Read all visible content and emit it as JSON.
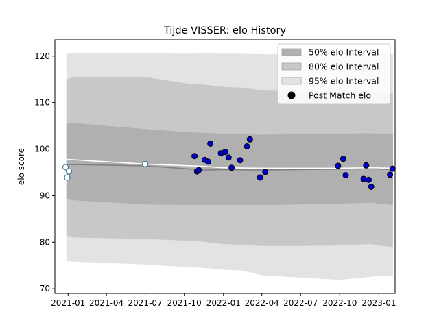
{
  "chart_data": {
    "type": "scatter",
    "title": "Tijde VISSER: elo History",
    "xlabel": "",
    "ylabel": "elo score",
    "xlim": [
      "2020-12-01",
      "2023-02-08"
    ],
    "ylim": [
      69,
      123.5
    ],
    "x_ticks": [
      "2021-01-01",
      "2021-04-01",
      "2021-07-01",
      "2021-10-01",
      "2022-01-01",
      "2022-04-01",
      "2022-07-01",
      "2022-10-01",
      "2023-01-01"
    ],
    "x_tick_labels": [
      "2021-01",
      "2021-04",
      "2021-07",
      "2021-10",
      "2022-01",
      "2022-04",
      "2022-07",
      "2022-10",
      "2023-01"
    ],
    "y_ticks": [
      70,
      80,
      90,
      100,
      110,
      120
    ],
    "y_tick_labels": [
      "70",
      "80",
      "90",
      "100",
      "110",
      "120"
    ],
    "grid": false,
    "legend": {
      "placement": "top-right",
      "entries": [
        {
          "label": "50% elo Interval",
          "color": "#b0b0b0"
        },
        {
          "label": "80% elo Interval",
          "color": "#c8c8c8"
        },
        {
          "label": "95% elo Interval",
          "color": "#e3e3e3"
        },
        {
          "label": "Post Match elo",
          "color": "#000000"
        }
      ]
    },
    "band_x": [
      "2020-12-28",
      "2021-01-15",
      "2021-07-01",
      "2021-10-15",
      "2021-11-15",
      "2022-01-01",
      "2022-02-15",
      "2022-04-01",
      "2022-07-01",
      "2022-10-01",
      "2022-11-15",
      "2022-12-15",
      "2023-01-01",
      "2023-02-03"
    ],
    "bands": [
      {
        "name": "95% elo Interval",
        "color": "#e3e3e3",
        "upper": [
          120.5,
          120.6,
          120.6,
          120.5,
          120.6,
          120.5,
          120.5,
          120.4,
          120.3,
          120.1,
          120.2,
          120.3,
          120.4,
          120.4
        ],
        "lower": [
          75.9,
          75.8,
          75.2,
          74.6,
          74.5,
          74.1,
          73.9,
          72.9,
          72.4,
          71.9,
          72.3,
          72.6,
          72.8,
          72.7
        ]
      },
      {
        "name": "80% elo Interval",
        "color": "#c8c8c8",
        "upper": [
          115.0,
          115.5,
          115.5,
          114.0,
          113.9,
          113.4,
          113.2,
          112.6,
          112.4,
          112.3,
          112.3,
          112.2,
          112.1,
          112.1
        ],
        "lower": [
          81.3,
          81.0,
          80.7,
          80.3,
          80.1,
          79.6,
          79.4,
          79.2,
          79.2,
          79.3,
          79.5,
          79.6,
          79.3,
          79.0
        ]
      },
      {
        "name": "50% elo Interval",
        "color": "#b0b0b0",
        "upper": [
          105.5,
          105.6,
          104.3,
          103.6,
          103.5,
          103.3,
          103.2,
          103.1,
          103.2,
          103.3,
          103.4,
          103.4,
          103.3,
          103.2
        ],
        "lower": [
          89.3,
          89.0,
          88.1,
          88.0,
          88.0,
          88.0,
          88.0,
          88.0,
          88.1,
          88.3,
          88.4,
          88.5,
          88.3,
          88.0
        ]
      }
    ],
    "series": [
      {
        "type": "line",
        "color": "#808080",
        "x": [
          "2020-12-28",
          "2021-07-01",
          "2021-11-15",
          "2022-01-01",
          "2022-04-01",
          "2022-10-01",
          "2022-12-15",
          "2023-02-03"
        ],
        "y": [
          96.7,
          96.4,
          95.5,
          95.6,
          95.5,
          95.7,
          95.8,
          95.6
        ]
      },
      {
        "type": "line",
        "color": "#ffffff",
        "x": [
          "2020-12-28",
          "2021-07-01",
          "2021-11-15",
          "2022-01-01",
          "2022-04-01",
          "2022-10-01",
          "2022-12-15",
          "2023-02-03"
        ],
        "y": [
          97.8,
          96.8,
          96.3,
          96.0,
          95.9,
          95.9,
          96.0,
          95.9
        ]
      },
      {
        "name": "Post Match elo",
        "type": "scatter",
        "points": [
          {
            "x": "2020-12-26",
            "y": 96.1,
            "style": "open"
          },
          {
            "x": "2020-12-30",
            "y": 93.9,
            "style": "open"
          },
          {
            "x": "2021-01-03",
            "y": 95.2,
            "style": "open"
          },
          {
            "x": "2021-07-01",
            "y": 96.8,
            "style": "open"
          },
          {
            "x": "2021-10-25",
            "y": 98.5,
            "style": "filled"
          },
          {
            "x": "2021-10-31",
            "y": 95.2,
            "style": "filled"
          },
          {
            "x": "2021-11-04",
            "y": 95.5,
            "style": "filled"
          },
          {
            "x": "2021-11-18",
            "y": 97.7,
            "style": "filled"
          },
          {
            "x": "2021-11-26",
            "y": 97.3,
            "style": "filled"
          },
          {
            "x": "2021-12-01",
            "y": 101.2,
            "style": "filled"
          },
          {
            "x": "2021-12-26",
            "y": 99.1,
            "style": "filled"
          },
          {
            "x": "2022-01-05",
            "y": 99.4,
            "style": "filled"
          },
          {
            "x": "2022-01-13",
            "y": 98.2,
            "style": "filled"
          },
          {
            "x": "2022-01-20",
            "y": 96.0,
            "style": "filled"
          },
          {
            "x": "2022-02-09",
            "y": 97.6,
            "style": "filled"
          },
          {
            "x": "2022-02-25",
            "y": 100.6,
            "style": "filled"
          },
          {
            "x": "2022-03-04",
            "y": 102.1,
            "style": "filled"
          },
          {
            "x": "2022-03-28",
            "y": 93.9,
            "style": "filled"
          },
          {
            "x": "2022-04-09",
            "y": 95.1,
            "style": "filled"
          },
          {
            "x": "2022-09-27",
            "y": 96.4,
            "style": "filled"
          },
          {
            "x": "2022-10-09",
            "y": 97.9,
            "style": "filled"
          },
          {
            "x": "2022-10-15",
            "y": 94.4,
            "style": "filled"
          },
          {
            "x": "2022-11-26",
            "y": 93.6,
            "style": "filled"
          },
          {
            "x": "2022-12-02",
            "y": 96.5,
            "style": "filled"
          },
          {
            "x": "2022-12-08",
            "y": 93.4,
            "style": "filled"
          },
          {
            "x": "2022-12-14",
            "y": 91.9,
            "style": "filled"
          },
          {
            "x": "2023-01-27",
            "y": 94.5,
            "style": "filled"
          },
          {
            "x": "2023-02-02",
            "y": 95.8,
            "style": "filled"
          }
        ]
      }
    ]
  }
}
